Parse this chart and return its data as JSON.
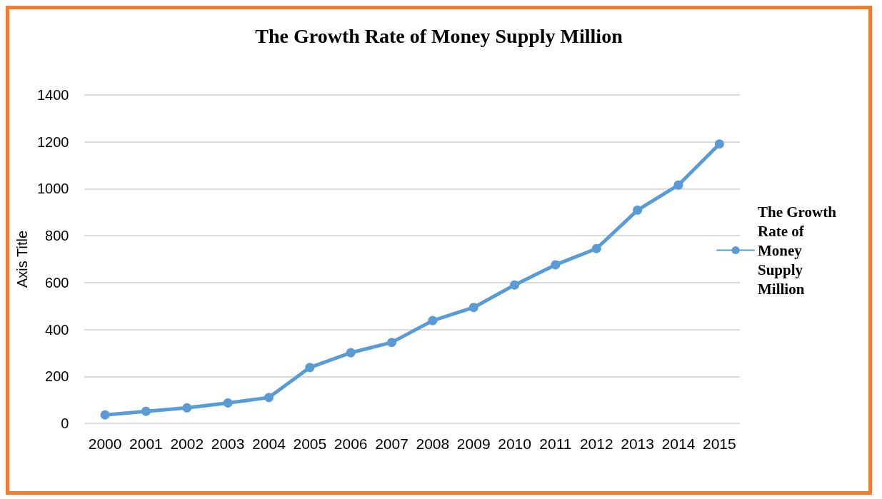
{
  "chart_data": {
    "type": "line",
    "title": "The Growth Rate of Money Supply Million",
    "ylabel": "Axis Title",
    "categories": [
      "2000",
      "2001",
      "2002",
      "2003",
      "2004",
      "2005",
      "2006",
      "2007",
      "2008",
      "2009",
      "2010",
      "2011",
      "2012",
      "2013",
      "2014",
      "2015"
    ],
    "series": [
      {
        "name": "The Growth Rate of Money Supply Million",
        "color": "#5b9bd5",
        "values": [
          36,
          51,
          66,
          87,
          110,
          238,
          301,
          345,
          438,
          494,
          590,
          676,
          745,
          909,
          1016,
          1191
        ]
      }
    ],
    "ylim": [
      0,
      1400
    ],
    "yticks": [
      0,
      200,
      400,
      600,
      800,
      1000,
      1200,
      1400
    ],
    "grid": "y",
    "legend": "right",
    "marker": "circle",
    "line_style": "solid"
  }
}
